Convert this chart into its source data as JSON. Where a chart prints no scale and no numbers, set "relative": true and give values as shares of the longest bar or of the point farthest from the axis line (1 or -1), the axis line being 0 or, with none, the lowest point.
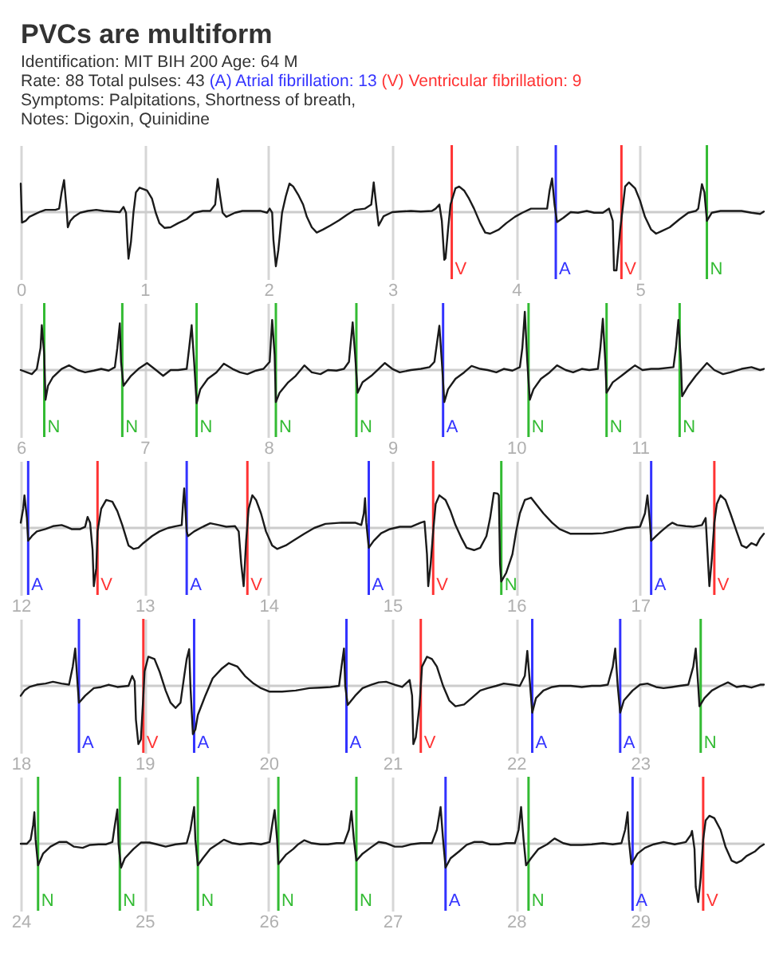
{
  "chart_data": [
    {
      "type": "line",
      "title": "PVCs are multiform",
      "subtitle": "Identification: MIT BIH 200 Age: 64 M",
      "annotations": [
        "Rate: 88 Total pulses: 43",
        "(A) Atrial fibrillation: 13",
        "(V) Ventricular fibrillation: 9",
        "Symptoms: Palpitations, Shortness of breath,",
        "Notes: Digoxin, Quinidine"
      ],
      "relative": true,
      "color": "#1a1a1a",
      "grid": "x",
      "xlim": [
        0,
        6
      ],
      "xticks": [
        0,
        1,
        2,
        3,
        4,
        5
      ],
      "x": [
        0.0,
        0.01,
        0.04,
        0.07,
        0.11,
        0.16,
        0.2,
        0.24,
        0.28,
        0.31,
        0.33,
        0.35,
        0.37,
        0.38,
        0.4,
        0.43,
        0.48,
        0.54,
        0.61,
        0.67,
        0.74,
        0.8,
        0.83,
        0.85,
        0.86,
        0.87,
        0.89,
        0.91,
        0.93,
        0.96,
        1.02,
        1.06,
        1.09,
        1.12,
        1.16,
        1.21,
        1.27,
        1.34,
        1.4,
        1.47,
        1.53,
        1.57,
        1.59,
        1.61,
        1.63,
        1.66,
        1.73,
        1.79,
        1.86,
        1.94,
        1.99,
        2.01,
        2.03,
        2.04,
        2.06,
        2.08,
        2.11,
        2.14,
        2.17,
        2.2,
        2.24,
        2.28,
        2.31,
        2.35,
        2.39,
        2.44,
        2.5,
        2.57,
        2.63,
        2.7,
        2.78,
        2.83,
        2.85,
        2.87,
        2.89,
        2.93,
        3.0,
        3.06,
        3.15,
        3.23,
        3.32,
        3.35,
        3.38,
        3.4,
        3.42,
        3.43,
        3.45,
        3.47,
        3.51,
        3.54,
        3.58,
        3.62,
        3.66,
        3.71,
        3.75,
        3.79,
        3.86,
        3.92,
        3.99,
        4.05,
        4.12,
        4.25,
        4.27,
        4.29,
        4.31,
        4.33,
        4.38,
        4.44,
        4.5,
        4.57,
        4.63,
        4.7,
        4.75,
        4.78,
        4.79,
        4.81,
        4.84,
        4.86,
        4.88,
        4.91,
        4.96,
        5.0,
        5.04,
        5.09,
        5.13,
        5.17,
        5.24,
        5.32,
        5.39,
        5.45,
        5.47,
        5.5,
        5.52,
        5.54,
        5.58,
        5.65,
        5.73,
        5.82,
        5.9,
        5.97,
        6.0
      ],
      "values": [
        0.49,
        -0.18,
        -0.15,
        -0.08,
        -0.04,
        0.01,
        0.04,
        0.04,
        0.04,
        0.06,
        0.34,
        0.55,
        0.06,
        -0.26,
        -0.15,
        -0.08,
        -0.01,
        0.02,
        0.04,
        0.02,
        0.01,
        0.0,
        0.09,
        -0.01,
        -0.44,
        -0.8,
        -0.51,
        -0.01,
        0.34,
        0.42,
        0.37,
        0.23,
        -0.01,
        -0.19,
        -0.27,
        -0.26,
        -0.19,
        -0.12,
        -0.01,
        0.02,
        0.02,
        0.13,
        0.57,
        0.27,
        -0.01,
        -0.08,
        -0.01,
        0.02,
        0.02,
        0.02,
        -0.01,
        0.06,
        -0.01,
        -0.47,
        -0.93,
        -0.65,
        -0.01,
        0.27,
        0.49,
        0.44,
        0.3,
        0.13,
        -0.08,
        -0.26,
        -0.35,
        -0.3,
        -0.23,
        -0.14,
        -0.05,
        0.04,
        0.06,
        0.13,
        0.51,
        0.13,
        -0.23,
        -0.07,
        0.0,
        0.01,
        0.02,
        0.01,
        0.02,
        0.06,
        0.13,
        -0.15,
        -0.82,
        -0.79,
        -0.3,
        0.13,
        0.41,
        0.44,
        0.37,
        0.23,
        0.06,
        -0.19,
        -0.35,
        -0.37,
        -0.3,
        -0.19,
        -0.08,
        -0.01,
        0.06,
        0.06,
        0.37,
        0.58,
        0.13,
        -0.17,
        -0.1,
        0.0,
        -0.01,
        0.02,
        -0.01,
        -0.01,
        0.06,
        -0.15,
        -1.0,
        -1.0,
        -0.3,
        0.06,
        0.44,
        0.51,
        0.41,
        0.2,
        -0.08,
        -0.3,
        -0.37,
        -0.33,
        -0.26,
        -0.12,
        -0.01,
        0.02,
        0.06,
        0.48,
        0.34,
        -0.15,
        -0.01,
        0.02,
        0.02,
        0.02,
        -0.01,
        -0.03,
        0.01
      ],
      "ref_lines": [
        {
          "axis": "y",
          "value": 0,
          "color": "#cccccc"
        },
        {
          "axis": "x",
          "value": 3.48,
          "label": "V",
          "color": "#ff3333"
        },
        {
          "axis": "x",
          "value": 4.32,
          "label": "A",
          "color": "#3333ff"
        },
        {
          "axis": "x",
          "value": 4.85,
          "label": "V",
          "color": "#ff3333"
        },
        {
          "axis": "x",
          "value": 5.54,
          "label": "N",
          "color": "#33bb33"
        }
      ]
    },
    {
      "type": "line",
      "relative": true,
      "color": "#1a1a1a",
      "grid": "x",
      "xlim": [
        6,
        12
      ],
      "xticks": [
        6,
        7,
        8,
        9,
        10,
        11
      ],
      "x": [
        6.0,
        6.05,
        6.09,
        6.13,
        6.16,
        6.17,
        6.19,
        6.2,
        6.22,
        6.26,
        6.33,
        6.39,
        6.46,
        6.52,
        6.59,
        6.65,
        6.71,
        6.76,
        6.78,
        6.8,
        6.81,
        6.83,
        6.89,
        6.95,
        7.02,
        7.08,
        7.15,
        7.21,
        7.27,
        7.34,
        7.36,
        7.38,
        7.4,
        7.42,
        7.45,
        7.51,
        7.58,
        7.64,
        7.71,
        7.77,
        7.83,
        7.9,
        7.96,
        8.01,
        8.03,
        8.05,
        8.06,
        8.09,
        8.16,
        8.22,
        8.29,
        8.35,
        8.42,
        8.48,
        8.55,
        8.61,
        8.65,
        8.68,
        8.7,
        8.72,
        8.76,
        8.83,
        8.89,
        8.94,
        9.0,
        9.06,
        9.15,
        9.23,
        9.3,
        9.34,
        9.38,
        9.4,
        9.42,
        9.45,
        9.51,
        9.58,
        9.64,
        9.71,
        9.77,
        9.84,
        9.9,
        9.97,
        10.03,
        10.05,
        10.07,
        10.09,
        10.11,
        10.14,
        10.2,
        10.27,
        10.33,
        10.4,
        10.46,
        10.53,
        10.59,
        10.66,
        10.68,
        10.7,
        10.72,
        10.73,
        10.78,
        10.85,
        10.91,
        10.96,
        11.02,
        11.09,
        11.15,
        11.27,
        11.29,
        11.31,
        11.33,
        11.34,
        11.39,
        11.45,
        11.54,
        11.6,
        11.67,
        11.73,
        11.82,
        11.9,
        11.97,
        12.0
      ],
      "values": [
        0.0,
        -0.04,
        -0.07,
        0.02,
        0.38,
        0.77,
        0.26,
        -0.51,
        -0.27,
        -0.12,
        0.02,
        0.08,
        0.0,
        -0.04,
        -0.01,
        0.02,
        -0.01,
        0.05,
        0.38,
        0.8,
        0.14,
        -0.27,
        -0.1,
        0.02,
        0.12,
        0.02,
        -0.1,
        0.0,
        0.0,
        0.02,
        0.38,
        0.77,
        0.14,
        -0.57,
        -0.33,
        -0.15,
        -0.04,
        0.11,
        0.02,
        -0.04,
        -0.07,
        -0.01,
        0.02,
        0.14,
        0.86,
        0.26,
        -0.55,
        -0.39,
        -0.21,
        -0.1,
        0.08,
        -0.04,
        -0.07,
        0.0,
        -0.01,
        0.02,
        0.14,
        0.82,
        0.26,
        -0.39,
        -0.21,
        -0.1,
        0.02,
        0.12,
        0.02,
        -0.04,
        0.0,
        0.02,
        0.05,
        0.14,
        0.76,
        0.14,
        -0.55,
        -0.33,
        -0.15,
        -0.04,
        0.07,
        0.02,
        0.0,
        -0.04,
        0.02,
        -0.01,
        0.05,
        0.38,
        1.0,
        0.14,
        -0.51,
        -0.33,
        -0.15,
        -0.04,
        0.08,
        0.0,
        -0.04,
        0.02,
        0.0,
        0.02,
        0.38,
        0.88,
        0.14,
        -0.39,
        -0.21,
        -0.1,
        0.0,
        0.08,
        0.0,
        0.02,
        0.02,
        0.05,
        0.38,
        0.86,
        0.14,
        -0.45,
        -0.27,
        -0.1,
        0.12,
        0.0,
        -0.07,
        -0.04,
        0.02,
        0.05,
        0.0,
        0.02
      ],
      "ref_lines": [
        {
          "axis": "y",
          "value": 0,
          "color": "#cccccc"
        },
        {
          "axis": "x",
          "value": 6.19,
          "label": "N",
          "color": "#33bb33"
        },
        {
          "axis": "x",
          "value": 6.82,
          "label": "N",
          "color": "#33bb33"
        },
        {
          "axis": "x",
          "value": 7.42,
          "label": "N",
          "color": "#33bb33"
        },
        {
          "axis": "x",
          "value": 8.06,
          "label": "N",
          "color": "#33bb33"
        },
        {
          "axis": "x",
          "value": 8.71,
          "label": "N",
          "color": "#33bb33"
        },
        {
          "axis": "x",
          "value": 9.41,
          "label": "A",
          "color": "#3333ff"
        },
        {
          "axis": "x",
          "value": 10.1,
          "label": "N",
          "color": "#33bb33"
        },
        {
          "axis": "x",
          "value": 10.73,
          "label": "N",
          "color": "#33bb33"
        },
        {
          "axis": "x",
          "value": 11.32,
          "label": "N",
          "color": "#33bb33"
        }
      ]
    },
    {
      "type": "line",
      "relative": true,
      "color": "#1a1a1a",
      "grid": "x",
      "xlim": [
        12,
        18
      ],
      "xticks": [
        12,
        13,
        14,
        15,
        16,
        17
      ],
      "x": [
        12.0,
        12.02,
        12.03,
        12.05,
        12.06,
        12.09,
        12.13,
        12.2,
        12.26,
        12.33,
        12.37,
        12.41,
        12.48,
        12.52,
        12.54,
        12.56,
        12.58,
        12.59,
        12.61,
        12.62,
        12.65,
        12.69,
        12.74,
        12.78,
        12.82,
        12.87,
        12.91,
        12.95,
        12.99,
        13.06,
        13.12,
        13.19,
        13.25,
        13.3,
        13.31,
        13.32,
        13.34,
        13.35,
        13.4,
        13.47,
        13.53,
        13.6,
        13.66,
        13.73,
        13.76,
        13.78,
        13.8,
        13.82,
        13.84,
        13.87,
        13.9,
        13.94,
        13.98,
        14.03,
        14.07,
        14.14,
        14.2,
        14.29,
        14.37,
        14.46,
        14.59,
        14.7,
        14.75,
        14.77,
        14.78,
        14.79,
        14.81,
        14.85,
        14.91,
        14.98,
        15.06,
        15.15,
        15.23,
        15.26,
        15.28,
        15.29,
        15.31,
        15.33,
        15.35,
        15.38,
        15.43,
        15.47,
        15.51,
        15.56,
        15.6,
        15.66,
        15.71,
        15.76,
        15.79,
        15.82,
        15.85,
        15.86,
        15.87,
        15.88,
        15.92,
        15.97,
        16.0,
        16.03,
        16.07,
        16.12,
        16.16,
        16.22,
        16.29,
        16.35,
        16.44,
        16.53,
        16.61,
        16.7,
        16.78,
        16.89,
        17.0,
        17.04,
        17.06,
        17.08,
        17.09,
        17.13,
        17.17,
        17.22,
        17.26,
        17.3,
        17.37,
        17.43,
        17.5,
        17.53,
        17.54,
        17.56,
        17.58,
        17.6,
        17.62,
        17.65,
        17.69,
        17.73,
        17.78,
        17.82,
        17.86,
        17.9,
        17.94,
        17.97,
        18.0
      ],
      "values": [
        0.09,
        0.33,
        0.56,
        0.17,
        -0.22,
        -0.14,
        -0.06,
        -0.02,
        0.03,
        0.05,
        0.02,
        -0.02,
        -0.02,
        0.02,
        0.19,
        0.09,
        -0.38,
        -1.0,
        -0.69,
        -0.06,
        0.33,
        0.48,
        0.45,
        0.29,
        0.05,
        -0.3,
        -0.36,
        -0.34,
        -0.26,
        -0.14,
        -0.06,
        0.0,
        0.03,
        0.05,
        0.41,
        0.68,
        -0.06,
        -0.14,
        -0.06,
        0.02,
        0.08,
        0.05,
        0.02,
        0.03,
        -0.06,
        -0.61,
        -1.0,
        -0.22,
        0.33,
        0.56,
        0.48,
        0.25,
        -0.06,
        -0.3,
        -0.36,
        -0.3,
        -0.22,
        -0.1,
        0.0,
        0.07,
        0.09,
        0.09,
        0.05,
        0.25,
        0.51,
        0.09,
        -0.34,
        -0.22,
        -0.09,
        -0.02,
        0.02,
        0.02,
        0.09,
        0.11,
        -0.45,
        -1.0,
        -0.61,
        -0.06,
        0.41,
        0.56,
        0.48,
        0.29,
        0.05,
        -0.18,
        -0.34,
        -0.38,
        -0.34,
        -0.14,
        0.17,
        0.6,
        0.59,
        0.56,
        -0.61,
        -0.92,
        -0.77,
        -0.45,
        -0.06,
        0.25,
        0.48,
        0.52,
        0.41,
        0.25,
        0.09,
        -0.02,
        -0.1,
        -0.1,
        -0.1,
        -0.09,
        -0.06,
        0.0,
        0.02,
        0.25,
        0.56,
        0.09,
        -0.22,
        -0.14,
        -0.06,
        0.03,
        0.09,
        0.05,
        0.03,
        0.02,
        0.05,
        0.17,
        -0.22,
        -1.0,
        -0.53,
        0.09,
        0.41,
        0.56,
        0.48,
        0.25,
        -0.06,
        -0.3,
        -0.34,
        -0.26,
        -0.3,
        -0.18,
        -0.1
      ],
      "ref_lines": [
        {
          "axis": "y",
          "value": 0,
          "color": "#cccccc"
        },
        {
          "axis": "x",
          "value": 12.06,
          "label": "A",
          "color": "#3333ff"
        },
        {
          "axis": "x",
          "value": 12.62,
          "label": "V",
          "color": "#ff3333"
        },
        {
          "axis": "x",
          "value": 13.34,
          "label": "A",
          "color": "#3333ff"
        },
        {
          "axis": "x",
          "value": 13.83,
          "label": "V",
          "color": "#ff3333"
        },
        {
          "axis": "x",
          "value": 14.81,
          "label": "A",
          "color": "#3333ff"
        },
        {
          "axis": "x",
          "value": 15.33,
          "label": "V",
          "color": "#ff3333"
        },
        {
          "axis": "x",
          "value": 15.88,
          "label": "N",
          "color": "#33bb33"
        },
        {
          "axis": "x",
          "value": 17.09,
          "label": "A",
          "color": "#3333ff"
        },
        {
          "axis": "x",
          "value": 17.6,
          "label": "V",
          "color": "#ff3333"
        }
      ]
    },
    {
      "type": "line",
      "relative": true,
      "color": "#1a1a1a",
      "grid": "x",
      "xlim": [
        18,
        24
      ],
      "xticks": [
        18,
        19,
        20,
        21,
        22,
        23
      ],
      "x": [
        18.0,
        18.03,
        18.07,
        18.13,
        18.2,
        18.26,
        18.33,
        18.39,
        18.42,
        18.44,
        18.46,
        18.47,
        18.52,
        18.59,
        18.65,
        18.71,
        18.78,
        18.87,
        18.9,
        18.92,
        18.93,
        18.95,
        18.97,
        18.99,
        19.0,
        19.03,
        19.08,
        19.12,
        19.17,
        19.21,
        19.25,
        19.29,
        19.32,
        19.34,
        19.36,
        19.37,
        19.39,
        19.41,
        19.43,
        19.49,
        19.55,
        19.62,
        19.68,
        19.75,
        19.81,
        19.88,
        19.94,
        20.01,
        20.11,
        20.22,
        20.33,
        20.42,
        20.5,
        20.57,
        20.59,
        20.61,
        20.62,
        20.64,
        20.7,
        20.76,
        20.83,
        20.89,
        20.95,
        21.02,
        21.08,
        21.14,
        21.16,
        21.17,
        21.19,
        21.22,
        21.24,
        21.28,
        21.32,
        21.36,
        21.41,
        21.46,
        21.51,
        21.58,
        21.64,
        21.71,
        21.77,
        21.84,
        21.9,
        21.97,
        22.03,
        22.07,
        22.09,
        22.11,
        22.13,
        22.16,
        22.22,
        22.29,
        22.35,
        22.44,
        22.53,
        22.61,
        22.68,
        22.74,
        22.78,
        22.8,
        22.82,
        22.84,
        22.87,
        22.94,
        23.0,
        23.06,
        23.13,
        23.19,
        23.26,
        23.32,
        23.39,
        23.43,
        23.45,
        23.47,
        23.48,
        23.52,
        23.58,
        23.65,
        23.71,
        23.78,
        23.84,
        23.9,
        23.97,
        24.0
      ],
      "values": [
        -0.17,
        -0.08,
        -0.02,
        0.02,
        0.04,
        0.07,
        0.04,
        0.02,
        0.33,
        0.64,
        0.0,
        -0.29,
        -0.17,
        -0.04,
        -0.02,
        0.02,
        -0.02,
        0.0,
        0.17,
        0.08,
        -0.58,
        -1.0,
        -0.92,
        -0.17,
        0.25,
        0.5,
        0.46,
        0.25,
        -0.08,
        -0.29,
        -0.38,
        -0.29,
        0.17,
        0.46,
        0.63,
        0.0,
        -0.83,
        -0.75,
        -0.5,
        -0.17,
        0.13,
        0.29,
        0.39,
        0.33,
        0.17,
        0.04,
        -0.04,
        -0.1,
        -0.1,
        -0.08,
        -0.04,
        -0.03,
        -0.02,
        0.0,
        0.33,
        0.64,
        0.0,
        -0.33,
        -0.17,
        -0.04,
        0.02,
        0.06,
        0.07,
        0.02,
        -0.02,
        0.1,
        -0.17,
        -1.0,
        -0.88,
        -0.33,
        0.33,
        0.5,
        0.46,
        0.33,
        0.0,
        -0.25,
        -0.35,
        -0.32,
        -0.21,
        -0.08,
        -0.04,
        0.0,
        0.04,
        0.02,
        0.0,
        0.17,
        0.6,
        0.08,
        -0.46,
        -0.21,
        -0.08,
        -0.02,
        0.0,
        0.0,
        -0.02,
        0.0,
        0.0,
        0.02,
        0.33,
        0.64,
        0.0,
        -0.46,
        -0.25,
        -0.08,
        0.02,
        0.04,
        -0.02,
        -0.04,
        -0.02,
        0.0,
        0.02,
        0.33,
        0.64,
        0.0,
        -0.35,
        -0.21,
        -0.08,
        0.0,
        0.06,
        -0.02,
        0.0,
        -0.03,
        0.02,
        0.02
      ],
      "ref_lines": [
        {
          "axis": "y",
          "value": 0,
          "color": "#cccccc"
        },
        {
          "axis": "x",
          "value": 18.47,
          "label": "A",
          "color": "#3333ff"
        },
        {
          "axis": "x",
          "value": 18.99,
          "label": "V",
          "color": "#ff3333"
        },
        {
          "axis": "x",
          "value": 19.4,
          "label": "A",
          "color": "#3333ff"
        },
        {
          "axis": "x",
          "value": 20.63,
          "label": "A",
          "color": "#3333ff"
        },
        {
          "axis": "x",
          "value": 21.23,
          "label": "V",
          "color": "#ff3333"
        },
        {
          "axis": "x",
          "value": 22.13,
          "label": "A",
          "color": "#3333ff"
        },
        {
          "axis": "x",
          "value": 22.84,
          "label": "A",
          "color": "#3333ff"
        },
        {
          "axis": "x",
          "value": 23.49,
          "label": "N",
          "color": "#33bb33"
        }
      ]
    },
    {
      "type": "line",
      "relative": true,
      "color": "#1a1a1a",
      "grid": "x",
      "xlim": [
        24,
        30
      ],
      "xticks": [
        24,
        25,
        26,
        27,
        28,
        29
      ],
      "x": [
        24.0,
        24.05,
        24.08,
        24.1,
        24.11,
        24.12,
        24.14,
        24.18,
        24.24,
        24.31,
        24.37,
        24.43,
        24.5,
        24.56,
        24.63,
        24.69,
        24.74,
        24.76,
        24.78,
        24.79,
        24.81,
        24.84,
        24.91,
        24.97,
        25.04,
        25.1,
        25.17,
        25.25,
        25.34,
        25.37,
        25.4,
        25.41,
        25.43,
        25.47,
        25.53,
        25.6,
        25.64,
        25.71,
        25.77,
        25.86,
        25.94,
        26.01,
        26.03,
        26.05,
        26.07,
        26.08,
        26.14,
        26.2,
        26.24,
        26.29,
        26.35,
        26.42,
        26.48,
        26.55,
        26.61,
        26.65,
        26.67,
        26.69,
        26.71,
        26.76,
        26.83,
        26.89,
        26.95,
        27.02,
        27.08,
        27.15,
        27.23,
        27.32,
        27.36,
        27.39,
        27.41,
        27.43,
        27.47,
        27.54,
        27.6,
        27.66,
        27.73,
        27.79,
        27.86,
        27.92,
        27.99,
        28.02,
        28.04,
        28.06,
        28.08,
        28.12,
        28.18,
        28.25,
        28.31,
        28.38,
        28.44,
        28.53,
        28.61,
        28.7,
        28.78,
        28.85,
        28.88,
        28.9,
        28.91,
        28.93,
        28.98,
        29.04,
        29.11,
        29.19,
        29.28,
        29.37,
        29.41,
        29.42,
        29.44,
        29.45,
        29.47,
        29.49,
        29.51,
        29.53,
        29.56,
        29.6,
        29.65,
        29.69,
        29.74,
        29.78,
        29.82,
        29.86,
        29.93,
        29.97,
        30.0
      ],
      "values": [
        0.0,
        0.0,
        0.07,
        0.32,
        0.54,
        0.07,
        -0.37,
        -0.17,
        -0.05,
        0.03,
        0.03,
        -0.05,
        -0.07,
        -0.02,
        -0.01,
        -0.01,
        0.03,
        0.32,
        0.59,
        -0.01,
        -0.41,
        -0.25,
        -0.09,
        0.02,
        0.02,
        -0.01,
        -0.05,
        -0.01,
        0.01,
        0.24,
        0.63,
        0.07,
        -0.37,
        -0.25,
        -0.09,
        0.01,
        0.07,
        0.01,
        -0.01,
        0.01,
        -0.01,
        0.03,
        0.32,
        0.58,
        0.07,
        -0.35,
        -0.19,
        -0.09,
        -0.01,
        0.06,
        0.01,
        -0.01,
        -0.01,
        0.01,
        0.01,
        0.24,
        0.56,
        0.07,
        -0.29,
        -0.17,
        -0.06,
        0.03,
        0.01,
        -0.05,
        -0.05,
        -0.01,
        0.01,
        0.01,
        0.24,
        0.63,
        0.07,
        -0.41,
        -0.25,
        -0.13,
        -0.02,
        0.03,
        0.03,
        -0.01,
        -0.01,
        0.01,
        0.01,
        0.24,
        0.63,
        0.07,
        -0.37,
        -0.25,
        -0.09,
        -0.01,
        0.09,
        0.01,
        -0.02,
        -0.02,
        -0.01,
        0.01,
        -0.01,
        0.01,
        0.24,
        0.54,
        0.07,
        -0.35,
        -0.17,
        -0.07,
        -0.01,
        0.03,
        -0.01,
        0.03,
        0.15,
        0.22,
        -0.09,
        -0.74,
        -1.0,
        -0.58,
        0.07,
        0.4,
        0.48,
        0.44,
        0.24,
        -0.05,
        -0.29,
        -0.33,
        -0.29,
        -0.21,
        -0.13,
        -0.05,
        -0.01
      ],
      "ref_lines": [
        {
          "axis": "y",
          "value": 0,
          "color": "#cccccc"
        },
        {
          "axis": "x",
          "value": 24.14,
          "label": "N",
          "color": "#33bb33"
        },
        {
          "axis": "x",
          "value": 24.8,
          "label": "N",
          "color": "#33bb33"
        },
        {
          "axis": "x",
          "value": 25.43,
          "label": "N",
          "color": "#33bb33"
        },
        {
          "axis": "x",
          "value": 26.08,
          "label": "N",
          "color": "#33bb33"
        },
        {
          "axis": "x",
          "value": 26.71,
          "label": "N",
          "color": "#33bb33"
        },
        {
          "axis": "x",
          "value": 27.43,
          "label": "A",
          "color": "#3333ff"
        },
        {
          "axis": "x",
          "value": 28.1,
          "label": "N",
          "color": "#33bb33"
        },
        {
          "axis": "x",
          "value": 28.94,
          "label": "A",
          "color": "#3333ff"
        },
        {
          "axis": "x",
          "value": 29.51,
          "label": "V",
          "color": "#ff3333"
        }
      ]
    }
  ]
}
